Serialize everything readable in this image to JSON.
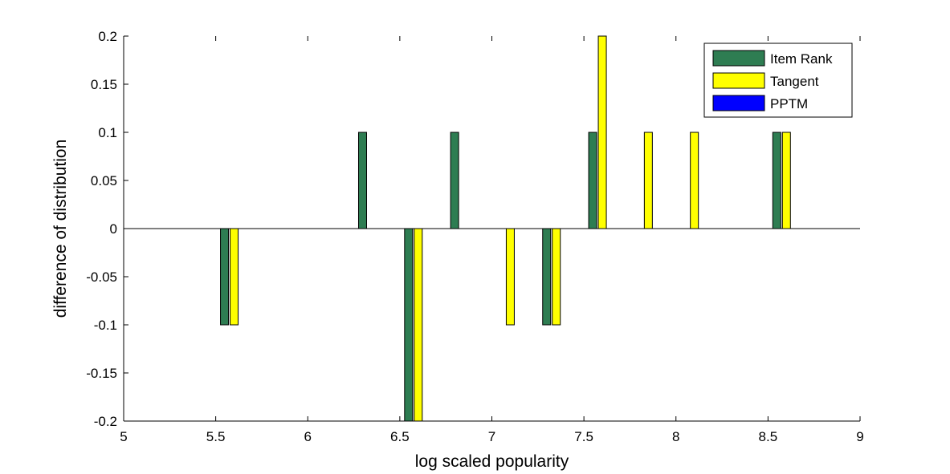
{
  "chart_data": {
    "type": "bar",
    "xlabel": "log scaled popularity",
    "ylabel": "difference of distribution",
    "xlim": [
      5,
      9
    ],
    "ylim": [
      -0.2,
      0.2
    ],
    "xticks": [
      "5",
      "5.5",
      "6",
      "6.5",
      "7",
      "7.5",
      "8",
      "8.5",
      "9"
    ],
    "yticks": [
      "0.2",
      "0.15",
      "0.1",
      "0.05",
      "0",
      "-0.05",
      "-0.1",
      "-0.15",
      "-0.2"
    ],
    "grid": false,
    "legend_position": "top-right",
    "categories": [
      5.6,
      6.35,
      6.6,
      6.85,
      7.1,
      7.35,
      7.6,
      7.85,
      8.1,
      8.6
    ],
    "series": [
      {
        "name": "Item Rank",
        "color": "#2e7d52",
        "values": [
          -0.1,
          0.1,
          -0.2,
          0.1,
          0,
          -0.1,
          0.1,
          0,
          0,
          0.1
        ]
      },
      {
        "name": "Tangent",
        "color": "#ffff00",
        "values": [
          -0.1,
          0,
          -0.2,
          0,
          -0.1,
          -0.1,
          0.2,
          0.1,
          0.1,
          0.1
        ]
      },
      {
        "name": "PPTM",
        "color": "#0000ff",
        "values": [
          0,
          0,
          0,
          0,
          0,
          0,
          0,
          0,
          0,
          0
        ]
      }
    ]
  }
}
